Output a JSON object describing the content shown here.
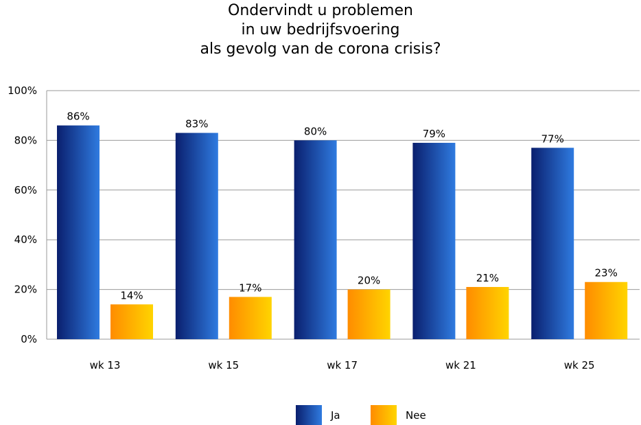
{
  "chart_data": {
    "type": "bar",
    "title_lines": [
      "Ondervindt u problemen",
      "in uw bedrijfsvoering",
      "als gevolg van de corona crisis?"
    ],
    "categories": [
      "wk 13",
      "wk 15",
      "wk 17",
      "wk 21",
      "wk 25"
    ],
    "series": [
      {
        "name": "Ja",
        "values": [
          86,
          83,
          80,
          79,
          77
        ],
        "labels": [
          "86%",
          "83%",
          "80%",
          "79%",
          "77%"
        ],
        "colors": [
          "#0a1f6e",
          "#2f7be0"
        ]
      },
      {
        "name": "Nee",
        "values": [
          14,
          17,
          20,
          21,
          23
        ],
        "labels": [
          "14%",
          "17%",
          "20%",
          "21%",
          "23%"
        ],
        "colors": [
          "#ff8c00",
          "#ffd400"
        ]
      }
    ],
    "ylim": [
      0,
      100
    ],
    "yticks": [
      "0%",
      "20%",
      "40%",
      "60%",
      "80%",
      "100%"
    ],
    "grid": true,
    "legend_position": "bottom"
  }
}
